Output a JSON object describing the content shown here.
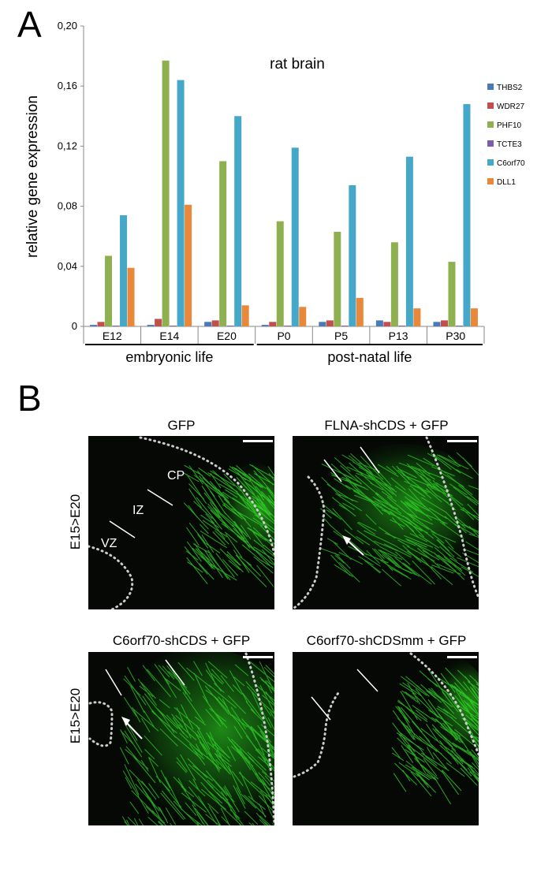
{
  "panel_a": {
    "letter": "A"
  },
  "panel_b": {
    "letter": "B",
    "row_label": "E15>E20",
    "panels": [
      {
        "title": "GFP",
        "labels": [
          "CP",
          "IZ",
          "VZ"
        ]
      },
      {
        "title": "FLNA-shCDS + GFP"
      },
      {
        "title": "C6orf70-shCDS + GFP"
      },
      {
        "title": "C6orf70-shCDSmm + GFP"
      }
    ]
  },
  "chart_data": {
    "type": "bar",
    "title": "rat brain",
    "ylabel": "relative gene expression",
    "ylim": [
      0,
      0.2
    ],
    "yticks": [
      "0",
      "0,04",
      "0,08",
      "0,12",
      "0,16",
      "0,20"
    ],
    "categories": [
      "E12",
      "E14",
      "E20",
      "P0",
      "P5",
      "P13",
      "P30"
    ],
    "groups": [
      {
        "label": "embryonic life",
        "span": [
          "E12",
          "E20"
        ]
      },
      {
        "label": "post-natal life",
        "span": [
          "P0",
          "P30"
        ]
      }
    ],
    "legend_position": "right",
    "series": [
      {
        "name": "THBS2",
        "color": "#4a7ab8",
        "values": [
          0.001,
          0.001,
          0.003,
          0.001,
          0.003,
          0.004,
          0.003
        ]
      },
      {
        "name": "WDR27",
        "color": "#c0504d",
        "values": [
          0.003,
          0.005,
          0.004,
          0.003,
          0.004,
          0.003,
          0.004
        ]
      },
      {
        "name": "PHF10",
        "color": "#8fb050",
        "values": [
          0.047,
          0.177,
          0.11,
          0.07,
          0.063,
          0.056,
          0.043
        ]
      },
      {
        "name": "TCTE3",
        "color": "#7b5ea7",
        "values": [
          0.0005,
          0.0005,
          0.0005,
          0.0005,
          0.0005,
          0.0005,
          0.0005
        ]
      },
      {
        "name": "C6orf70",
        "color": "#46a8c8",
        "values": [
          0.074,
          0.164,
          0.14,
          0.119,
          0.094,
          0.113,
          0.148
        ]
      },
      {
        "name": "DLL1",
        "color": "#e8883a",
        "values": [
          0.039,
          0.081,
          0.014,
          0.013,
          0.019,
          0.012,
          0.012
        ]
      }
    ]
  }
}
